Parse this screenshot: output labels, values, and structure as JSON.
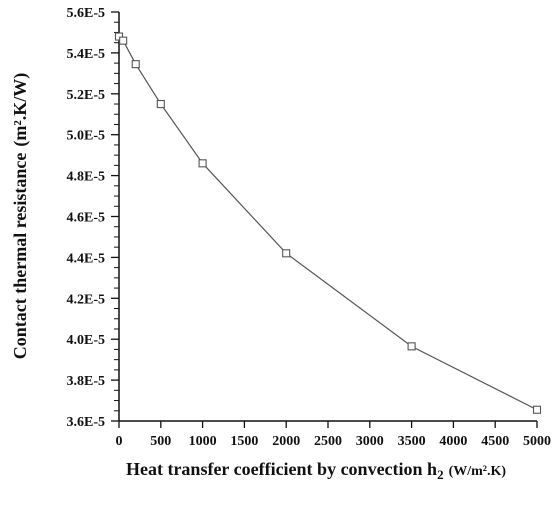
{
  "chart_data": {
    "type": "line",
    "title": "",
    "xlabel": "Heat transfer coefficient by convection h2 (W/m².K)",
    "xlabel_parts": {
      "main": "Heat transfer coefficient by convection h",
      "subscript": "2",
      "unit": "(W/m².K)"
    },
    "ylabel": "Contact thermal resistance (m².K/W)",
    "ylabel_parts": {
      "main": "Contact thermal resistance",
      "unit": "(m².K/W)"
    },
    "xlim": [
      0,
      5000
    ],
    "ylim": [
      3.6e-05,
      5.6e-05
    ],
    "x_ticks": [
      0,
      500,
      1000,
      1500,
      2000,
      2500,
      3000,
      3500,
      4000,
      4500,
      5000
    ],
    "x_tick_labels": [
      "0",
      "500",
      "1000",
      "1500",
      "2000",
      "2500",
      "3000",
      "3500",
      "4000",
      "4500",
      "5000"
    ],
    "y_ticks": [
      3.6e-05,
      3.8e-05,
      4e-05,
      4.2e-05,
      4.4e-05,
      4.6e-05,
      4.8e-05,
      5e-05,
      5.2e-05,
      5.4e-05,
      5.6e-05
    ],
    "y_tick_labels": [
      "3.6E-5",
      "3.8E-5",
      "4.0E-5",
      "4.2E-5",
      "4.4E-5",
      "4.6E-5",
      "4.8E-5",
      "5.0E-5",
      "5.2E-5",
      "5.4E-5",
      "5.6E-5"
    ],
    "grid": false,
    "marker": "open-square",
    "colors": {
      "line": "#555555",
      "axis": "#111111",
      "text": "#111111",
      "background": "#ffffff"
    },
    "series": [
      {
        "x": [
          0,
          50,
          200,
          500,
          1000,
          2000,
          3500,
          5000
        ],
        "y": [
          5.48e-05,
          5.46e-05,
          5.345e-05,
          5.15e-05,
          4.86e-05,
          4.42e-05,
          3.965e-05,
          3.655e-05
        ]
      }
    ]
  }
}
